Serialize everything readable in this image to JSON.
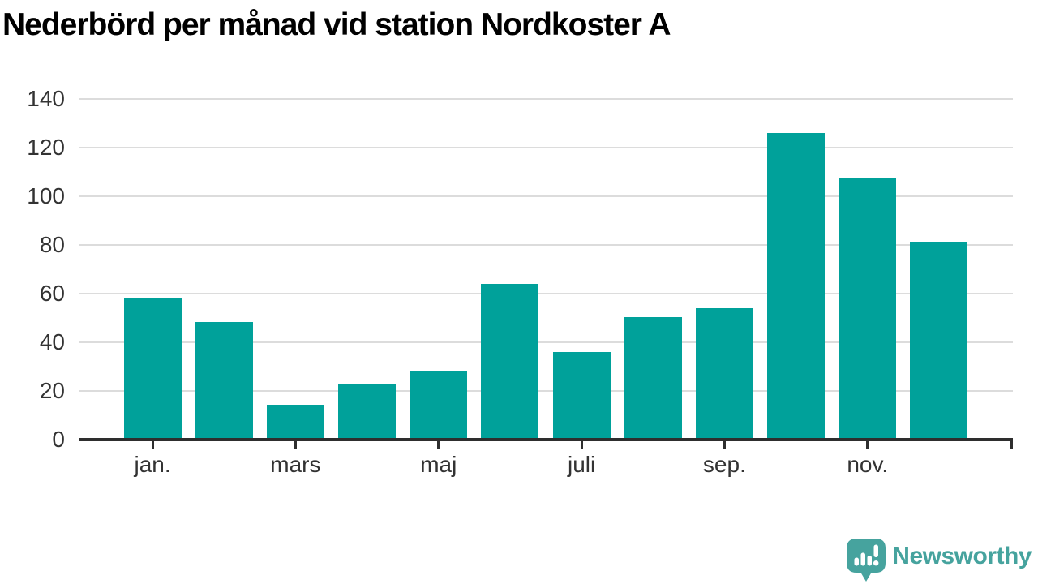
{
  "chart_data": {
    "type": "bar",
    "title": "Nederbörd per månad vid station Nordkoster A",
    "values": [
      58,
      48.5,
      14.5,
      23,
      28,
      64,
      36,
      50.5,
      54,
      126,
      107.5,
      81.5
    ],
    "x_tick_labels": [
      {
        "index": 0,
        "label": "jan."
      },
      {
        "index": 2,
        "label": "mars"
      },
      {
        "index": 4,
        "label": "maj"
      },
      {
        "index": 6,
        "label": "juli"
      },
      {
        "index": 8,
        "label": "sep."
      },
      {
        "index": 10,
        "label": "nov."
      }
    ],
    "y_ticks": [
      0,
      20,
      40,
      60,
      80,
      100,
      120,
      140
    ],
    "ylim": [
      0,
      140
    ],
    "grid": true,
    "legend": false,
    "xlabel": "",
    "ylabel": "",
    "bar_color": "#00a19a"
  },
  "colors": {
    "bar": "#00a19a",
    "logo": "#46a39e",
    "axis": "#2e2e2e",
    "gridline": "#dcdcdc",
    "tick_label": "#333333",
    "title": "#000000"
  },
  "logo": {
    "brand": "Newsworthy"
  }
}
